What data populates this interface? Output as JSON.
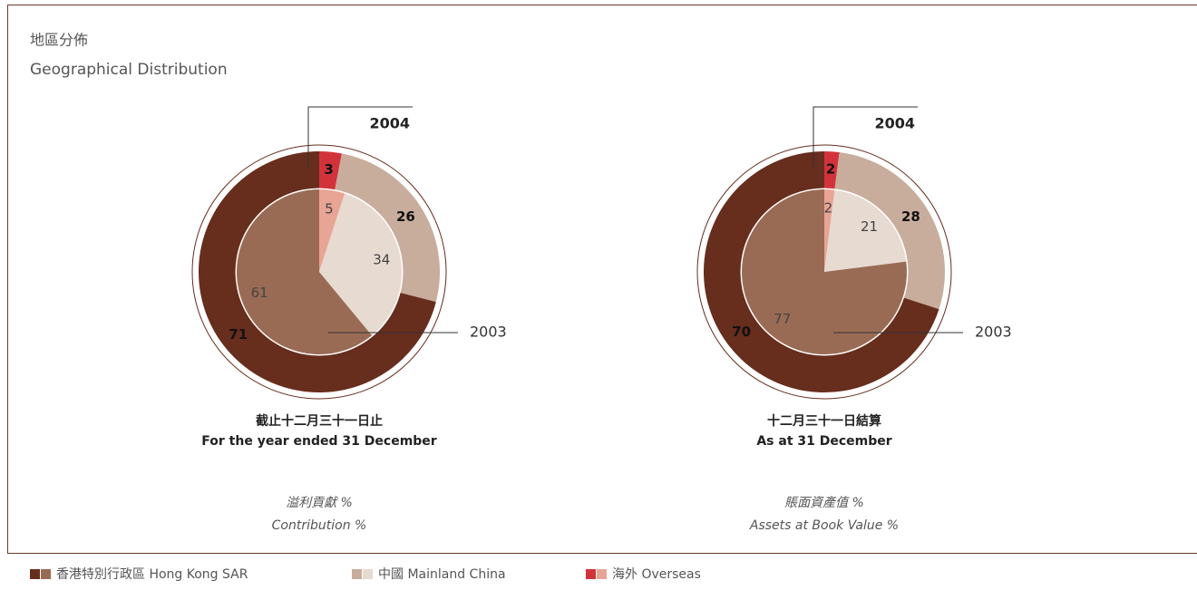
{
  "title": "地區分佈",
  "subtitle": "Geographical Distribution",
  "legend": [
    {
      "name": "香港特別行政區 Hong Kong SAR",
      "colors": [
        "#672d1d",
        "#9a6b54"
      ]
    },
    {
      "name": "中國 Mainland China",
      "colors": [
        "#c8ad9d",
        "#e6dad1"
      ]
    },
    {
      "name": "海外 Overseas",
      "colors": [
        "#d2333b",
        "#e8a494"
      ]
    }
  ],
  "chart_data": [
    {
      "type": "pie",
      "caption": [
        "截止十二月三十一日止",
        "For the year ended 31 December"
      ],
      "metric": [
        "溢利貢獻 %",
        "Contribution %"
      ],
      "series": [
        {
          "name": "2004",
          "ring": "outer",
          "colors": [
            "#672d1d",
            "#c8ad9d",
            "#d2333b"
          ],
          "values": [
            71,
            26,
            3
          ]
        },
        {
          "name": "2003",
          "ring": "inner",
          "colors": [
            "#9a6b54",
            "#e6dad1",
            "#e8a494"
          ],
          "values": [
            61,
            34,
            5
          ]
        }
      ]
    },
    {
      "type": "pie",
      "caption": [
        "十二月三十一日結算",
        "As at 31 December"
      ],
      "metric": [
        "賬面資產值 %",
        "Assets at Book Value %"
      ],
      "series": [
        {
          "name": "2004",
          "ring": "outer",
          "colors": [
            "#672d1d",
            "#c8ad9d",
            "#d2333b"
          ],
          "values": [
            70,
            28,
            2
          ]
        },
        {
          "name": "2003",
          "ring": "inner",
          "colors": [
            "#9a6b54",
            "#e6dad1",
            "#e8a494"
          ],
          "values": [
            77,
            21,
            2
          ]
        }
      ]
    }
  ]
}
